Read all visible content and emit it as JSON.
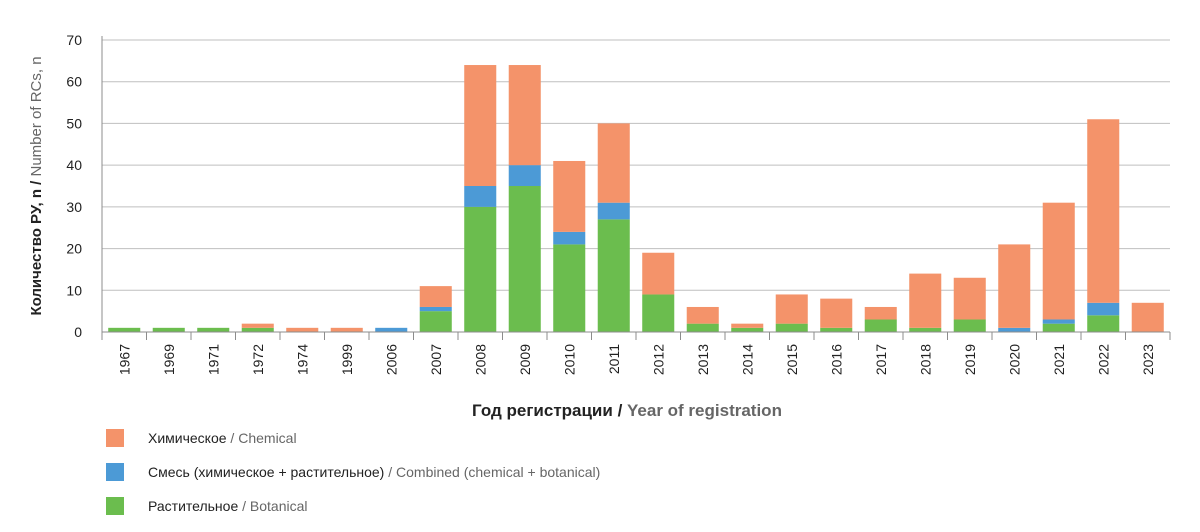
{
  "colors": {
    "chemical": "#F4936A",
    "combined": "#4C9AD6",
    "botanical": "#6BBD4E",
    "grid": "#BFBFBF",
    "axis": "#8C8C8C"
  },
  "legend": [
    {
      "key": "chemical",
      "label_ru": "Химическое",
      "sep": " / ",
      "label_en": "Chemical"
    },
    {
      "key": "combined",
      "label_ru": "Смесь (химическое + растительное)",
      "sep": " / ",
      "label_en": "Combined (chemical + botanical)"
    },
    {
      "key": "botanical",
      "label_ru": "Растительное",
      "sep": " / ",
      "label_en": "Botanical"
    }
  ],
  "chart_data": {
    "type": "bar",
    "stacked": true,
    "xlabel_ru": "Год регистрации",
    "xlabel_sep": " / ",
    "xlabel_en": "Year of registration",
    "ylabel_ru": "Количество РУ, n",
    "ylabel_sep": " / ",
    "ylabel_en": "Number of RCs, n",
    "ylim": [
      0,
      70
    ],
    "yticks": [
      0,
      10,
      20,
      30,
      40,
      50,
      60,
      70
    ],
    "grid": true,
    "legend_position": "bottom-left",
    "categories": [
      "1967",
      "1969",
      "1971",
      "1972",
      "1974",
      "1999",
      "2006",
      "2007",
      "2008",
      "2009",
      "2010",
      "2011",
      "2012",
      "2013",
      "2014",
      "2015",
      "2016",
      "2017",
      "2018",
      "2019",
      "2020",
      "2021",
      "2022",
      "2023"
    ],
    "series": [
      {
        "name": "Растительное / Botanical",
        "key": "botanical",
        "values": [
          1,
          1,
          1,
          1,
          0,
          0,
          0,
          5,
          30,
          35,
          21,
          27,
          9,
          2,
          1,
          2,
          1,
          3,
          1,
          3,
          0,
          2,
          4,
          0
        ]
      },
      {
        "name": "Смесь (химическое + растительное) / Combined (chemical + botanical)",
        "key": "combined",
        "values": [
          0,
          0,
          0,
          0,
          0,
          0,
          1,
          1,
          5,
          5,
          3,
          4,
          0,
          0,
          0,
          0,
          0,
          0,
          0,
          0,
          1,
          1,
          3,
          0
        ]
      },
      {
        "name": "Химическое / Chemical",
        "key": "chemical",
        "values": [
          0,
          0,
          0,
          1,
          1,
          1,
          0,
          5,
          29,
          24,
          17,
          19,
          10,
          4,
          1,
          7,
          7,
          3,
          13,
          10,
          20,
          28,
          44,
          7
        ]
      }
    ]
  }
}
